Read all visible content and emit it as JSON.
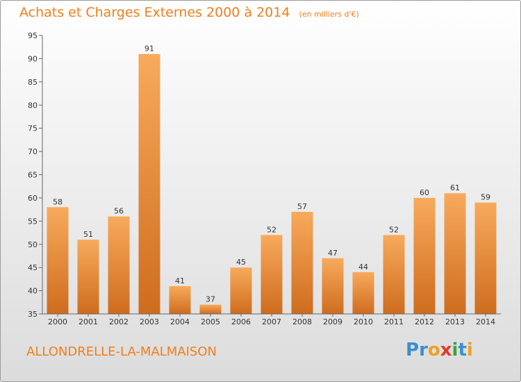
{
  "title": "Achats et Charges Externes 2000 à 2014",
  "subtitle": "(en milliers d'€)",
  "location": "ALLONDRELLE-LA-MALMAISON",
  "logo": [
    "P",
    "r",
    "o",
    "x",
    "i",
    "t",
    "i"
  ],
  "colors": {
    "accent": "#ee7f1e",
    "bar_top": "#f8aa5c",
    "bar_bottom": "#cf6c1e",
    "logo": [
      "#3a8fd0",
      "#3a8fd0",
      "#f0a020",
      "#e23a2a",
      "#3aa53a",
      "#3a8fd0",
      "#f0a020"
    ]
  },
  "chart_data": {
    "type": "bar",
    "categories": [
      "2000",
      "2001",
      "2002",
      "2003",
      "2004",
      "2005",
      "2006",
      "2007",
      "2008",
      "2009",
      "2010",
      "2011",
      "2012",
      "2013",
      "2014"
    ],
    "values": [
      58,
      51,
      56,
      91,
      41,
      37,
      45,
      52,
      57,
      47,
      44,
      52,
      60,
      61,
      59
    ],
    "title": "Achats et Charges Externes 2000 à 2014",
    "ylim": [
      35,
      95
    ],
    "yticks": [
      35,
      40,
      45,
      50,
      55,
      60,
      65,
      70,
      75,
      80,
      85,
      90,
      95
    ],
    "grid": false,
    "data_labels": true
  }
}
